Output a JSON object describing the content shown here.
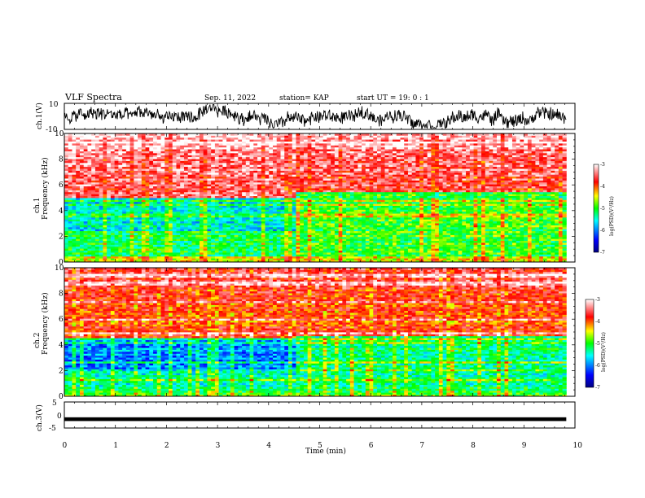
{
  "header": {
    "title": "VLF Spectra",
    "date": "Sep. 11, 2022",
    "station": "station= KAP",
    "start": "start  UT =  19: 0  : 1"
  },
  "chart_data": [
    {
      "type": "line",
      "panel": "ch1-waveform",
      "ylabel": "ch.1(V)",
      "ylim": [
        -10,
        10
      ],
      "yticks": [
        "10",
        "-10"
      ],
      "xlim": [
        0,
        10
      ],
      "x_extent_min": [
        0,
        9.83
      ],
      "description_values": "noisy waveform, amplitude roughly -8 to +8 V"
    },
    {
      "type": "heatmap",
      "panel": "ch1-spectrogram",
      "ylabel": "ch.1\nFrequency (kHz)",
      "ylim": [
        0,
        10
      ],
      "yticks": [
        "0",
        "2",
        "4",
        "6",
        "8",
        "10"
      ],
      "xlim": [
        0,
        10
      ],
      "x_extent_min": [
        0,
        9.83
      ],
      "colorbar": {
        "label": "log(PSD)(V²/Hz)",
        "range": [
          -7,
          -3
        ],
        "ticks": [
          "-3",
          "-4",
          "-5",
          "-6",
          "-7"
        ]
      },
      "regime_change_min": 4.5,
      "dominant_levels_kHz_before": [
        [
          0,
          0.4,
          -4.5
        ],
        [
          0.4,
          2.5,
          -5.2
        ],
        [
          2.5,
          5,
          -5.6
        ],
        [
          5,
          10,
          -3.5
        ]
      ],
      "dominant_levels_kHz_after": [
        [
          0,
          0.4,
          -4.5
        ],
        [
          0.4,
          2.5,
          -5.0
        ],
        [
          2.5,
          5.5,
          -5.0
        ],
        [
          5.5,
          10,
          -3.6
        ]
      ]
    },
    {
      "type": "heatmap",
      "panel": "ch2-spectrogram",
      "ylabel": "ch.2\nFrequency (kHz)",
      "ylim": [
        0,
        10
      ],
      "yticks": [
        "0",
        "2",
        "4",
        "6",
        "8",
        "10"
      ],
      "xlim": [
        0,
        10
      ],
      "x_extent_min": [
        0,
        9.83
      ],
      "colorbar": {
        "label": "log(PSD)(V²/Hz)",
        "range": [
          -7,
          -3
        ],
        "ticks": [
          "-3",
          "-4",
          "-5",
          "-6",
          "-7"
        ]
      },
      "regime_change_min": 4.5,
      "dominant_levels_kHz_before": [
        [
          0,
          0.5,
          -5.0
        ],
        [
          0.5,
          2.0,
          -5.4
        ],
        [
          2.0,
          4.5,
          -6.0
        ],
        [
          4.5,
          10,
          -3.9
        ]
      ],
      "dominant_levels_kHz_after": [
        [
          0,
          0.5,
          -5.0
        ],
        [
          0.5,
          2.0,
          -5.3
        ],
        [
          2.0,
          4.7,
          -5.3
        ],
        [
          4.7,
          10,
          -3.9
        ]
      ]
    },
    {
      "type": "line",
      "panel": "ch3-waveform",
      "ylabel": "ch.3(V)",
      "xlabel": "Time (min)",
      "ylim": [
        -5,
        5
      ],
      "yticks": [
        "5",
        "0",
        "-5"
      ],
      "xlim": [
        0,
        10
      ],
      "x_extent_min": [
        0,
        9.83
      ],
      "x": [
        0,
        9.83
      ],
      "values": [
        -1.6,
        -1.6
      ],
      "band_halfwidth": 0.25,
      "xticks": [
        "0",
        "1",
        "2",
        "3",
        "4",
        "5",
        "6",
        "7",
        "8",
        "9",
        "10"
      ]
    }
  ],
  "colors": {
    "cmap": [
      "#000080",
      "#0000ff",
      "#00ffff",
      "#00ff00",
      "#ffff00",
      "#ff0000",
      "#ffffff"
    ]
  }
}
